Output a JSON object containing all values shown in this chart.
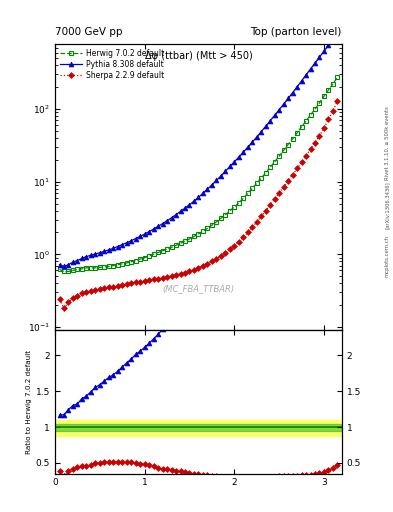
{
  "title_left": "7000 GeV pp",
  "title_right": "Top (parton level)",
  "plot_title": "Δφ (ttbar) (Mtt > 450)",
  "watermark": "(MC_FBA_TTBAR)",
  "rivet_label": "Rivet 3.1.10, ≥ 500k events",
  "arxiv_label": "[arXiv:1306.3436]",
  "mcplots_label": "mcplots.cern.ch",
  "ylabel_ratio": "Ratio to Herwig 7.0.2 default",
  "xlim": [
    0.0,
    3.2
  ],
  "ylim_main": [
    0.09,
    800
  ],
  "ylim_ratio": [
    0.35,
    2.35
  ],
  "x": [
    0.05,
    0.1,
    0.15,
    0.2,
    0.25,
    0.3,
    0.35,
    0.4,
    0.45,
    0.5,
    0.55,
    0.6,
    0.65,
    0.7,
    0.75,
    0.8,
    0.85,
    0.9,
    0.95,
    1.0,
    1.05,
    1.1,
    1.15,
    1.2,
    1.25,
    1.3,
    1.35,
    1.4,
    1.45,
    1.5,
    1.55,
    1.6,
    1.65,
    1.7,
    1.75,
    1.8,
    1.85,
    1.9,
    1.95,
    2.0,
    2.05,
    2.1,
    2.15,
    2.2,
    2.25,
    2.3,
    2.35,
    2.4,
    2.45,
    2.5,
    2.55,
    2.6,
    2.65,
    2.7,
    2.75,
    2.8,
    2.85,
    2.9,
    2.95,
    3.0,
    3.05,
    3.1,
    3.15
  ],
  "herwig_y": [
    0.62,
    0.58,
    0.58,
    0.6,
    0.62,
    0.63,
    0.65,
    0.65,
    0.65,
    0.66,
    0.67,
    0.68,
    0.7,
    0.72,
    0.74,
    0.76,
    0.79,
    0.82,
    0.86,
    0.9,
    0.95,
    1.0,
    1.06,
    1.12,
    1.18,
    1.25,
    1.33,
    1.42,
    1.52,
    1.63,
    1.76,
    1.91,
    2.08,
    2.28,
    2.52,
    2.8,
    3.12,
    3.5,
    3.95,
    4.5,
    5.1,
    5.9,
    6.9,
    8.1,
    9.5,
    11.2,
    13.2,
    15.8,
    18.8,
    22.5,
    27.0,
    32.5,
    39.0,
    47.0,
    57.0,
    69.0,
    83.0,
    100.0,
    122.0,
    150.0,
    183.0,
    223.0,
    275.0
  ],
  "pythia_y": [
    0.72,
    0.68,
    0.72,
    0.78,
    0.82,
    0.88,
    0.93,
    0.97,
    1.01,
    1.05,
    1.1,
    1.15,
    1.21,
    1.28,
    1.36,
    1.44,
    1.54,
    1.65,
    1.77,
    1.9,
    2.06,
    2.23,
    2.43,
    2.65,
    2.9,
    3.18,
    3.52,
    3.9,
    4.33,
    4.82,
    5.4,
    6.1,
    6.92,
    7.9,
    9.05,
    10.4,
    12.0,
    13.9,
    16.2,
    18.8,
    21.8,
    25.5,
    29.8,
    35.0,
    41.2,
    48.8,
    58.0,
    69.0,
    82.0,
    98.0,
    117.0,
    140.0,
    168.0,
    202.0,
    244.0,
    296.0,
    357.0,
    430.0,
    520.0,
    630.0,
    755.0,
    0.0,
    0.0
  ],
  "sherpa_y": [
    0.24,
    0.18,
    0.22,
    0.25,
    0.27,
    0.29,
    0.3,
    0.31,
    0.32,
    0.33,
    0.34,
    0.35,
    0.36,
    0.37,
    0.38,
    0.39,
    0.4,
    0.41,
    0.42,
    0.43,
    0.44,
    0.45,
    0.46,
    0.47,
    0.49,
    0.5,
    0.52,
    0.54,
    0.56,
    0.58,
    0.61,
    0.65,
    0.69,
    0.74,
    0.8,
    0.87,
    0.95,
    1.05,
    1.17,
    1.32,
    1.5,
    1.72,
    2.0,
    2.35,
    2.78,
    3.32,
    3.98,
    4.8,
    5.8,
    7.0,
    8.5,
    10.3,
    12.5,
    15.2,
    18.5,
    22.8,
    28.0,
    34.5,
    43.0,
    55.0,
    72.0,
    95.0,
    130.0
  ],
  "ratio_pythia_y": [
    1.16,
    1.17,
    1.24,
    1.3,
    1.32,
    1.4,
    1.43,
    1.49,
    1.55,
    1.59,
    1.64,
    1.69,
    1.73,
    1.78,
    1.84,
    1.89,
    1.95,
    2.01,
    2.06,
    2.11,
    2.17,
    2.23,
    2.29,
    2.37,
    2.46,
    2.54,
    2.65,
    2.75,
    2.85,
    2.96,
    3.07,
    3.19,
    3.33,
    3.47,
    3.59,
    3.71,
    3.85,
    3.97,
    4.1,
    4.18,
    4.27,
    4.32,
    4.32,
    4.32,
    4.33,
    4.36,
    4.39,
    4.37,
    4.36,
    4.36,
    4.33,
    4.31,
    4.31,
    4.3,
    4.28,
    4.29,
    4.3,
    4.3,
    4.26,
    4.2,
    4.12,
    0.0,
    0.0
  ],
  "ratio_sherpa_y": [
    0.39,
    0.31,
    0.38,
    0.42,
    0.44,
    0.46,
    0.46,
    0.48,
    0.49,
    0.5,
    0.51,
    0.51,
    0.51,
    0.51,
    0.51,
    0.51,
    0.51,
    0.5,
    0.49,
    0.48,
    0.46,
    0.45,
    0.43,
    0.42,
    0.41,
    0.4,
    0.39,
    0.38,
    0.37,
    0.36,
    0.35,
    0.34,
    0.33,
    0.32,
    0.32,
    0.31,
    0.3,
    0.3,
    0.3,
    0.29,
    0.29,
    0.29,
    0.29,
    0.29,
    0.29,
    0.3,
    0.3,
    0.3,
    0.31,
    0.31,
    0.31,
    0.32,
    0.32,
    0.32,
    0.32,
    0.33,
    0.34,
    0.35,
    0.35,
    0.37,
    0.39,
    0.43,
    0.47
  ],
  "herwig_band_outer": [
    0.88,
    1.1
  ],
  "herwig_band_inner": [
    0.94,
    1.04
  ],
  "herwig_color": "#008800",
  "pythia_color": "#0000cc",
  "sherpa_color": "#cc0000",
  "band_yellow": "#ffff00",
  "band_green": "#00aa00",
  "bg_color": "#ffffff"
}
